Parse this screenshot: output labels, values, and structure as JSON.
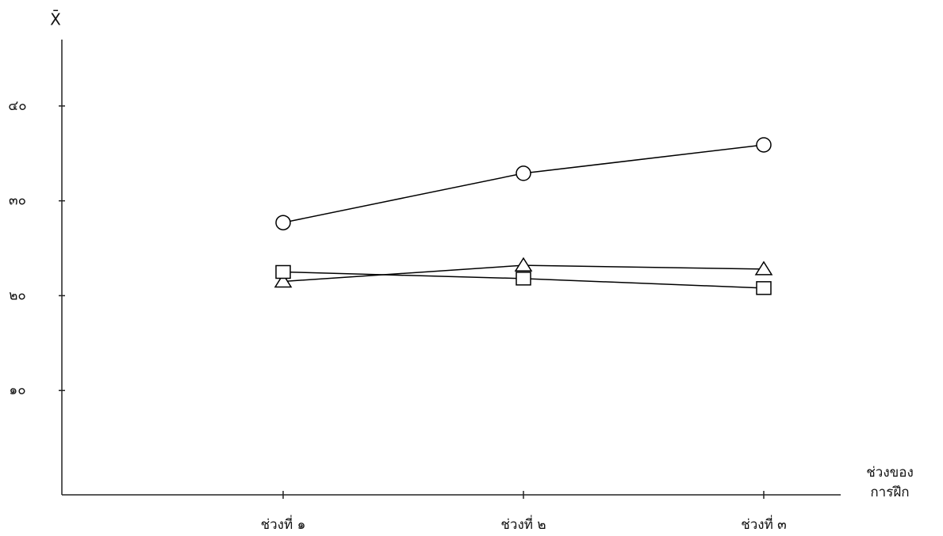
{
  "chart_data": {
    "type": "line",
    "y_label": "X̄",
    "x_label": [
      "ช่วงของ",
      "การฝึก"
    ],
    "categories": [
      "ช่วงที่ ๑",
      "ช่วงที่ ๒",
      "ช่วงที่ ๓"
    ],
    "series": [
      {
        "marker": "circle",
        "color": "#000000",
        "values": [
          27.7,
          32.9,
          35.9
        ]
      },
      {
        "marker": "triangle",
        "color": "#000000",
        "values": [
          21.5,
          23.2,
          22.8
        ]
      },
      {
        "marker": "square",
        "color": "#000000",
        "values": [
          22.5,
          21.8,
          20.8
        ]
      }
    ],
    "ylim": [
      -1,
      47
    ],
    "yticks": [
      {
        "value": 10,
        "label": "๑๐"
      },
      {
        "value": 20,
        "label": "๒๐"
      },
      {
        "value": 30,
        "label": "๓๐"
      },
      {
        "value": 40,
        "label": "๔๐"
      }
    ],
    "grid": false
  }
}
